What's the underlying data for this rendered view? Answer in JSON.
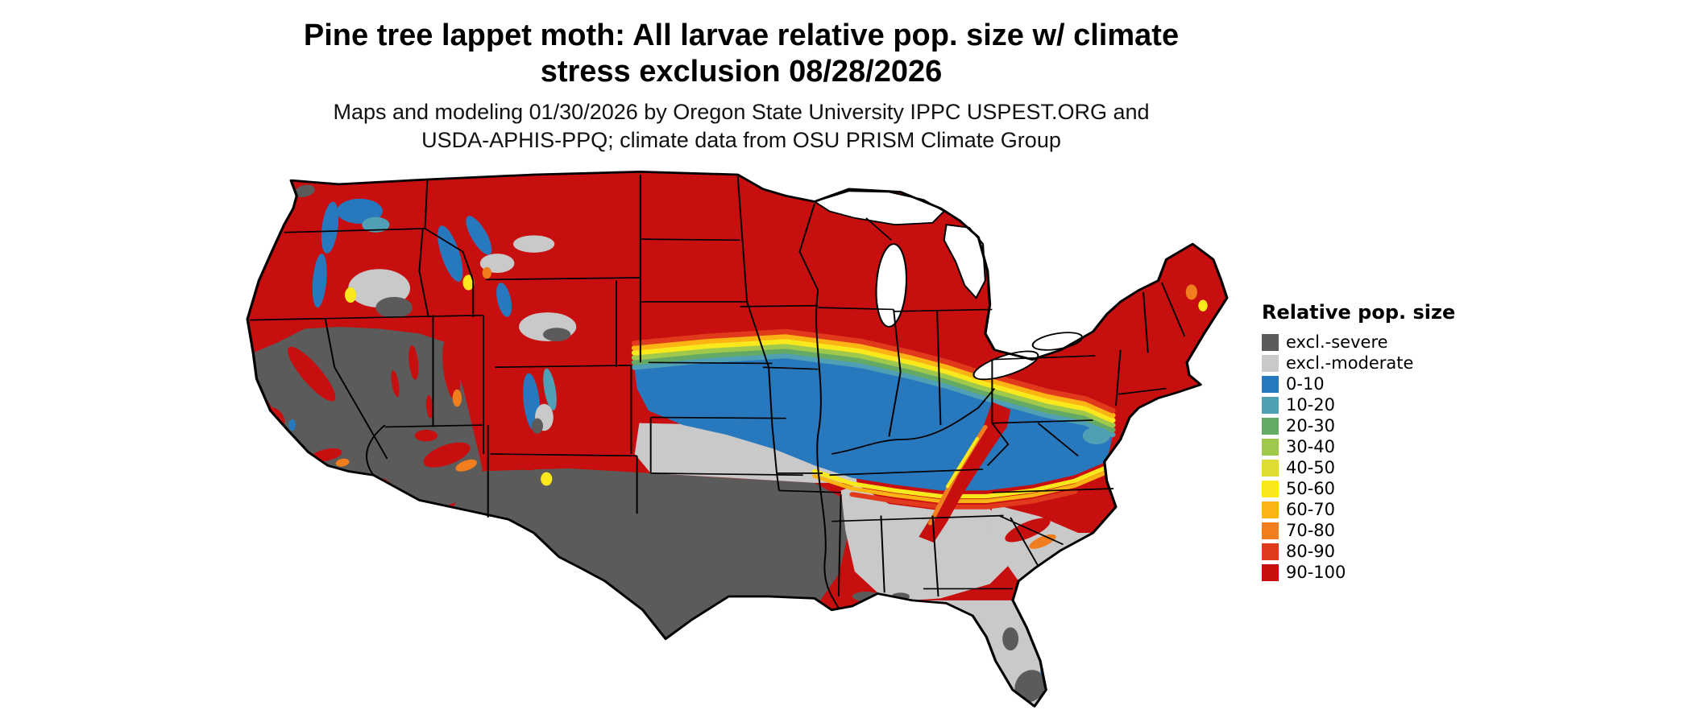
{
  "title": {
    "line1": "Pine tree lappet moth: All larvae relative pop. size w/ climate",
    "line2": "stress exclusion 08/28/2026"
  },
  "subtitle": {
    "line1": "Maps and modeling 01/30/2026 by Oregon State University IPPC USPEST.ORG and",
    "line2": "USDA-APHIS-PPQ; climate data from OSU PRISM Climate Group"
  },
  "legend": {
    "title": "Relative pop. size",
    "items": [
      {
        "key": "excl_severe",
        "label": "excl.-severe",
        "color": "#5b5b5b"
      },
      {
        "key": "excl_moderate",
        "label": "excl.-moderate",
        "color": "#c9c9c9"
      },
      {
        "key": "r0_10",
        "label": "0-10",
        "color": "#2878be"
      },
      {
        "key": "r10_20",
        "label": "10-20",
        "color": "#4fa0b4"
      },
      {
        "key": "r20_30",
        "label": "20-30",
        "color": "#64aa64"
      },
      {
        "key": "r30_40",
        "label": "30-40",
        "color": "#a0c84b"
      },
      {
        "key": "r40_50",
        "label": "40-50",
        "color": "#dcdc32"
      },
      {
        "key": "r50_60",
        "label": "50-60",
        "color": "#f8e81c"
      },
      {
        "key": "r60_70",
        "label": "60-70",
        "color": "#fbb414"
      },
      {
        "key": "r70_80",
        "label": "70-80",
        "color": "#f07d1e"
      },
      {
        "key": "r80_90",
        "label": "80-90",
        "color": "#e1391b"
      },
      {
        "key": "r90_100",
        "label": "90-100",
        "color": "#c80f0f"
      }
    ]
  }
}
